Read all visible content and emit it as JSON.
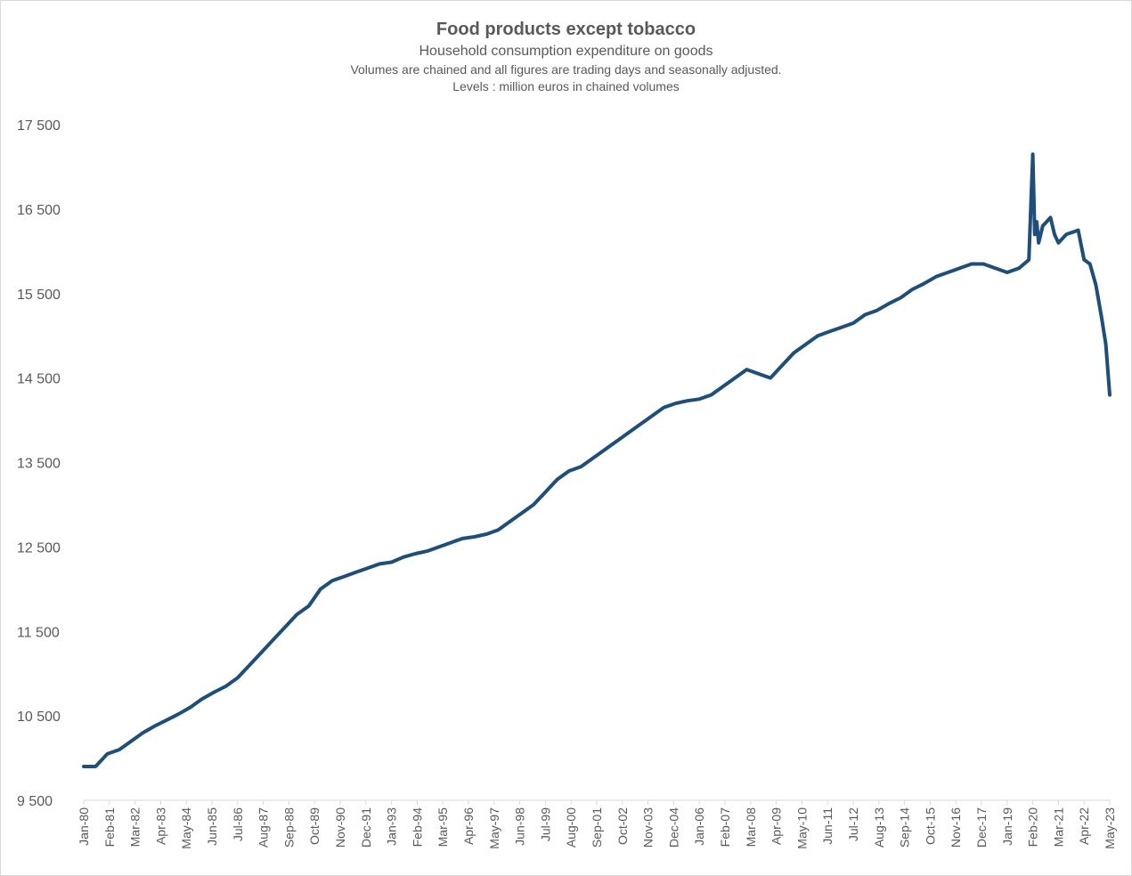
{
  "chart_data": {
    "type": "line",
    "title": "Food products except tobacco",
    "subtitle": "Household consumption expenditure on goods",
    "note1": "Volumes are chained and all figures are trading days and seasonally adjusted.",
    "note2": "Levels : million euros in chained volumes",
    "xlabel": "",
    "ylabel": "",
    "ylim": [
      9500,
      17500
    ],
    "xlim": [
      "1980-01",
      "2023-05"
    ],
    "grid": false,
    "legend": "none",
    "line_color": "#1f4e79",
    "yticks": [
      "9 500",
      "10 500",
      "11 500",
      "12 500",
      "13 500",
      "14 500",
      "15 500",
      "16 500",
      "17 500"
    ],
    "ytick_values": [
      9500,
      10500,
      11500,
      12500,
      13500,
      14500,
      15500,
      16500,
      17500
    ],
    "xticks": [
      "Jan-80",
      "Feb-81",
      "Mar-82",
      "Apr-83",
      "May-84",
      "Jun-85",
      "Jul-86",
      "Aug-87",
      "Sep-88",
      "Oct-89",
      "Nov-90",
      "Dec-91",
      "Jan-93",
      "Feb-94",
      "Mar-95",
      "Apr-96",
      "May-97",
      "Jun-98",
      "Jul-99",
      "Aug-00",
      "Sep-01",
      "Oct-02",
      "Nov-03",
      "Dec-04",
      "Jan-06",
      "Feb-07",
      "Mar-08",
      "Apr-09",
      "May-10",
      "Jun-11",
      "Jul-12",
      "Aug-13",
      "Sep-14",
      "Oct-15",
      "Nov-16",
      "Dec-17",
      "Jan-19",
      "Feb-20",
      "Mar-21",
      "Apr-22",
      "May-23"
    ],
    "series": [
      {
        "x": [
          "1980-01",
          "1980-07",
          "1981-01",
          "1981-07",
          "1982-01",
          "1982-07",
          "1983-01",
          "1983-07",
          "1984-01",
          "1984-07",
          "1985-01",
          "1985-07",
          "1986-01",
          "1986-07",
          "1987-01",
          "1987-07",
          "1988-01",
          "1988-07",
          "1989-01",
          "1989-07",
          "1990-01",
          "1990-07",
          "1991-01",
          "1991-07",
          "1992-01",
          "1992-07",
          "1993-01",
          "1993-07",
          "1994-01",
          "1994-07",
          "1995-01",
          "1995-07",
          "1996-01",
          "1996-07",
          "1997-01",
          "1997-07",
          "1998-01",
          "1998-07",
          "1999-01",
          "1999-07",
          "2000-01",
          "2000-07",
          "2001-01",
          "2001-07",
          "2002-01",
          "2002-07",
          "2003-01",
          "2003-07",
          "2004-01",
          "2004-07",
          "2005-01",
          "2005-07",
          "2006-01",
          "2006-07",
          "2007-01",
          "2007-07",
          "2008-01",
          "2008-07",
          "2009-01",
          "2009-07",
          "2010-01",
          "2010-07",
          "2011-01",
          "2011-07",
          "2012-01",
          "2012-07",
          "2013-01",
          "2013-07",
          "2014-01",
          "2014-07",
          "2015-01",
          "2015-07",
          "2016-01",
          "2016-07",
          "2017-01",
          "2017-07",
          "2018-01",
          "2018-07",
          "2019-01",
          "2019-07",
          "2019-12",
          "2020-02",
          "2020-03",
          "2020-04",
          "2020-05",
          "2020-07",
          "2020-11",
          "2021-01",
          "2021-03",
          "2021-07",
          "2022-01",
          "2022-04",
          "2022-07",
          "2022-10",
          "2023-01",
          "2023-03",
          "2023-05"
        ],
        "values": [
          9900,
          9900,
          10050,
          10100,
          10200,
          10300,
          10380,
          10450,
          10520,
          10600,
          10700,
          10780,
          10850,
          10950,
          11100,
          11250,
          11400,
          11550,
          11700,
          11800,
          12000,
          12100,
          12150,
          12200,
          12250,
          12300,
          12320,
          12380,
          12420,
          12450,
          12500,
          12550,
          12600,
          12620,
          12650,
          12700,
          12800,
          12900,
          13000,
          13150,
          13300,
          13400,
          13450,
          13550,
          13650,
          13750,
          13850,
          13950,
          14050,
          14150,
          14200,
          14230,
          14250,
          14300,
          14400,
          14500,
          14600,
          14550,
          14500,
          14650,
          14800,
          14900,
          15000,
          15050,
          15100,
          15150,
          15250,
          15300,
          15380,
          15450,
          15550,
          15620,
          15700,
          15750,
          15800,
          15850,
          15850,
          15800,
          15750,
          15800,
          15900,
          17150,
          16200,
          16350,
          16100,
          16300,
          16400,
          16200,
          16100,
          16200,
          16250,
          15900,
          15850,
          15600,
          15200,
          14900,
          14300
        ]
      }
    ]
  }
}
